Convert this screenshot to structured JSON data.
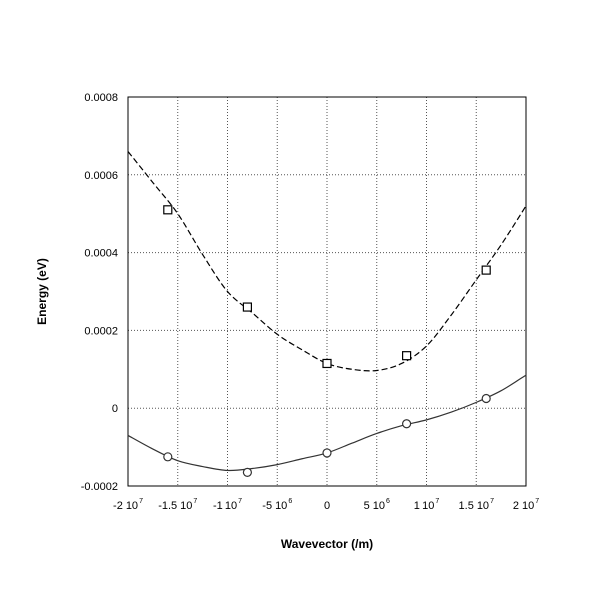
{
  "chart_data": {
    "type": "line",
    "title": "",
    "xlabel": "Wavevector (/m)",
    "ylabel": "Energy (eV)",
    "xlim": [
      -20000000,
      20000000
    ],
    "ylim": [
      -0.0002,
      0.0008
    ],
    "grid": true,
    "legend": "none",
    "x_ticks": [
      {
        "value": -20000000,
        "mantissa": "-2",
        "base": "10",
        "exp": "7"
      },
      {
        "value": -15000000,
        "mantissa": "-1.5",
        "base": "10",
        "exp": "7"
      },
      {
        "value": -10000000,
        "mantissa": "-1",
        "base": "10",
        "exp": "7"
      },
      {
        "value": -5000000,
        "mantissa": "-5",
        "base": "10",
        "exp": "6"
      },
      {
        "value": 0,
        "mantissa": "0",
        "base": "",
        "exp": ""
      },
      {
        "value": 5000000,
        "mantissa": "5",
        "base": "10",
        "exp": "6"
      },
      {
        "value": 10000000,
        "mantissa": "1",
        "base": "10",
        "exp": "7"
      },
      {
        "value": 15000000,
        "mantissa": "1.5",
        "base": "10",
        "exp": "7"
      },
      {
        "value": 20000000,
        "mantissa": "2",
        "base": "10",
        "exp": "7"
      }
    ],
    "y_ticks": [
      {
        "value": -0.0002,
        "label": "-0.0002"
      },
      {
        "value": 0,
        "label": "0"
      },
      {
        "value": 0.0002,
        "label": "0.0002"
      },
      {
        "value": 0.0004,
        "label": "0.0004"
      },
      {
        "value": 0.0006,
        "label": "0.0006"
      },
      {
        "value": 0.0008,
        "label": "0.0008"
      }
    ],
    "series": [
      {
        "style": "dashed",
        "marker": "square",
        "color": "#000000",
        "curve": {
          "x": [
            -20000000,
            -17500000,
            -15000000,
            -12500000,
            -10000000,
            -7500000,
            -5000000,
            -2500000,
            0,
            2500000,
            5000000,
            7500000,
            10000000,
            12500000,
            15000000,
            17500000,
            20000000
          ],
          "y": [
            0.00066,
            0.00058,
            0.0005,
            0.000395,
            0.0003,
            0.000245,
            0.00019,
            0.00015,
            0.000115,
            0.0001,
            9.7e-05,
            0.000115,
            0.00016,
            0.00024,
            0.00033,
            0.00042,
            0.00052
          ]
        },
        "markers": {
          "x": [
            -16000000,
            -8000000,
            0,
            8000000,
            16000000
          ],
          "y": [
            0.00051,
            0.00026,
            0.000115,
            0.000135,
            0.000355
          ]
        }
      },
      {
        "style": "solid",
        "marker": "circle",
        "color": "#333333",
        "curve": {
          "x": [
            -20000000,
            -17500000,
            -15000000,
            -12500000,
            -10000000,
            -7500000,
            -5000000,
            -2500000,
            0,
            2500000,
            5000000,
            7500000,
            10000000,
            12500000,
            15000000,
            17500000,
            20000000
          ],
          "y": [
            -7e-05,
            -0.000105,
            -0.000135,
            -0.00015,
            -0.00016,
            -0.000155,
            -0.000145,
            -0.00013,
            -0.000115,
            -9e-05,
            -6.5e-05,
            -4.5e-05,
            -3e-05,
            -1e-05,
            1.5e-05,
            4.5e-05,
            8.5e-05
          ]
        },
        "markers": {
          "x": [
            -16000000,
            -8000000,
            0,
            8000000,
            16000000
          ],
          "y": [
            -0.000125,
            -0.000165,
            -0.000115,
            -4e-05,
            2.5e-05
          ]
        }
      }
    ]
  }
}
